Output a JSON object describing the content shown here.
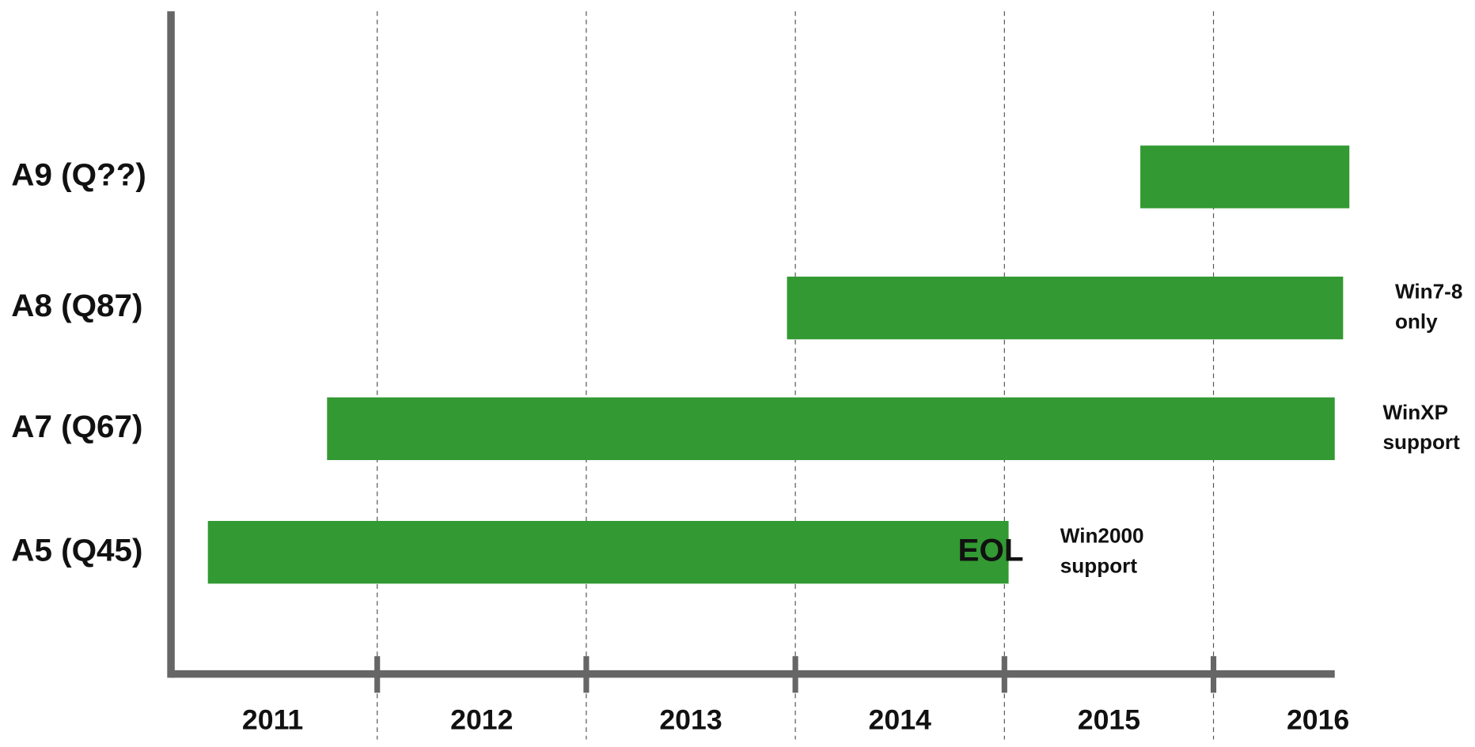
{
  "chart_data": {
    "type": "gantt",
    "categories": [
      "2011",
      "2012",
      "2013",
      "2014",
      "2015",
      "2016"
    ],
    "xlim": [
      2011,
      2016.58
    ],
    "xticks": [
      2012,
      2013,
      2014,
      2015,
      2016
    ],
    "grid": true,
    "color": "#339933",
    "tasks": [
      {
        "name": "A9 (Q??)",
        "start": 2015.65,
        "end": 2016.65
      },
      {
        "name": "A8 (Q87)",
        "start": 2013.96,
        "end": 2016.62,
        "note": [
          "Win7-8",
          "only"
        ]
      },
      {
        "name": "A7 (Q67)",
        "start": 2011.76,
        "end": 2016.58,
        "note": [
          "WinXP",
          "support"
        ]
      },
      {
        "name": "A5 (Q45)",
        "start": 2011.19,
        "end": 2015.02,
        "end_label": "EOL",
        "note": [
          "Win2000",
          "support"
        ]
      }
    ]
  }
}
